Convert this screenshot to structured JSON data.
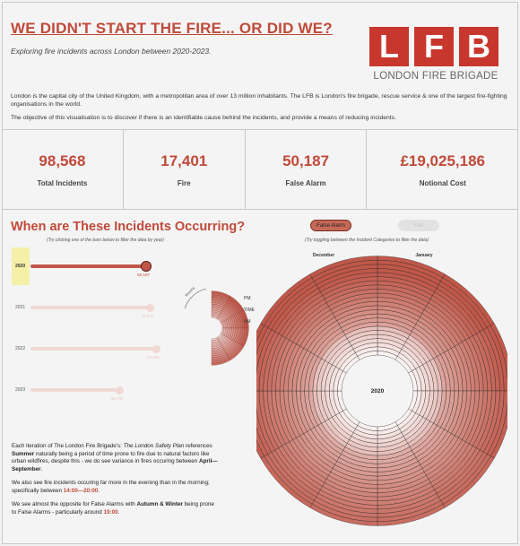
{
  "header": {
    "title": "WE DIDN'T START THE FIRE... OR DID WE?",
    "subtitle": "Exploring fire incidents across London between 2020-2023."
  },
  "logo": {
    "letters": [
      "L",
      "F",
      "B"
    ],
    "text": "LONDON FIRE BRIGADE",
    "color": "#c8372d"
  },
  "intro": {
    "p1": "London is the capital city of the United Kingdom, with a metropolitan area of over 13 million inhabitants. The LFB is London's fire brigade, rescue service & one of the largest fire-fighting organisations in the world.",
    "p2": "The objective of this visualisation is to discover if there is an identifiable cause behind the incidents, and provide a means of reducing incidents."
  },
  "kpis": [
    {
      "value": "98,568",
      "label": "Total Incidents"
    },
    {
      "value": "17,401",
      "label": "Fire"
    },
    {
      "value": "50,187",
      "label": "False Alarm"
    },
    {
      "value": "£19,025,186",
      "label": "Notional Cost"
    }
  ],
  "section": {
    "title": "When are These Incidents Occurring?",
    "year_hint": "(Try clicking one of the bars below to filter the data by year)"
  },
  "years": [
    {
      "year": "2020",
      "value_label": "50,187",
      "value": 50187,
      "active": true
    },
    {
      "year": "2021",
      "value_label": "51,874",
      "value": 51874,
      "active": false
    },
    {
      "year": "2022",
      "value_label": "54,363",
      "value": 54363,
      "active": false
    },
    {
      "year": "2023",
      "value_label": "38,706",
      "value": 38706,
      "active": false
    }
  ],
  "time_gauge": {
    "label_top": "PM",
    "label_mid": "TIME",
    "label_bottom": "AM",
    "arc_label": "Months"
  },
  "toggle": {
    "active_label": "False Alarm",
    "inactive_label": "Fire",
    "hint": "(Try toggling between the Incident Categories to filter the data)"
  },
  "radial": {
    "center_label": "2020",
    "month_left": "December",
    "month_right": "January"
  },
  "story": {
    "p1_a": "Each iteration of The London Fire Brigade's: ",
    "p1_italic": "The London Safety Plan",
    "p1_b": " references ",
    "p1_bold1": "Summer",
    "p1_c": " naturally being a period of time prone to fire due to natural factors like urban wildfires, despite this - we do see variance in fires occuring between ",
    "p1_bold2": "April—September",
    "p1_d": ".",
    "p2_a": "We also see fire incidents occuring far more in the evening than in the morning; specifically between ",
    "p2_red": "14:00—20:00",
    "p2_b": ".",
    "p3_a": "We see almost the opposite for False Alarms with ",
    "p3_bold": "Autumn & Winter",
    "p3_b": " being prone to False Alarms - particularly around ",
    "p3_red": "19:00",
    "p3_c": "."
  },
  "colors": {
    "accent": "#c04a3a",
    "bar_active": "#c0584a",
    "bar_inactive": "#f0d8d4",
    "ring_dark": "#c0584a",
    "ring_light": "#ffffff"
  }
}
